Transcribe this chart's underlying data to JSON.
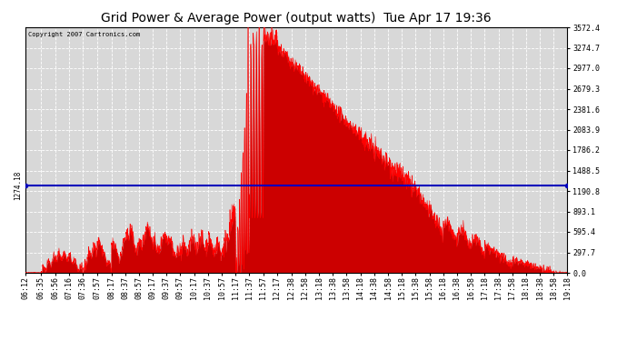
{
  "title": "Grid Power & Average Power (output watts)  Tue Apr 17 19:36",
  "copyright": "Copyright 2007 Cartronics.com",
  "avg_power": 1274.18,
  "y_max": 3572.4,
  "y_min": 0.0,
  "ytick_labels": [
    "0.0",
    "297.7",
    "595.4",
    "893.1",
    "1190.8",
    "1488.5",
    "1786.2",
    "2083.9",
    "2381.6",
    "2679.3",
    "2977.0",
    "3274.7",
    "3572.4"
  ],
  "ytick_values": [
    0.0,
    297.7,
    595.4,
    893.1,
    1190.8,
    1488.5,
    1786.2,
    2083.9,
    2381.6,
    2679.3,
    2977.0,
    3274.7,
    3572.4
  ],
  "xtick_labels": [
    "06:12",
    "06:35",
    "06:56",
    "07:16",
    "07:36",
    "07:57",
    "08:17",
    "08:37",
    "08:57",
    "09:17",
    "09:37",
    "09:57",
    "10:17",
    "10:37",
    "10:57",
    "11:17",
    "11:37",
    "11:57",
    "12:17",
    "12:38",
    "12:58",
    "13:18",
    "13:38",
    "13:58",
    "14:18",
    "14:38",
    "14:58",
    "15:18",
    "15:38",
    "15:58",
    "16:18",
    "16:38",
    "16:58",
    "17:18",
    "17:38",
    "17:58",
    "18:18",
    "18:38",
    "18:58",
    "19:18"
  ],
  "fill_color": "#cc0000",
  "line_color": "#ff0000",
  "avg_line_color": "#0000bb",
  "plot_bg_color": "#d8d8d8",
  "grid_color": "#ffffff",
  "outer_bg": "#ffffff",
  "border_color": "#000000",
  "title_fontsize": 10,
  "tick_fontsize": 6.0,
  "avg_label": "1274.18"
}
